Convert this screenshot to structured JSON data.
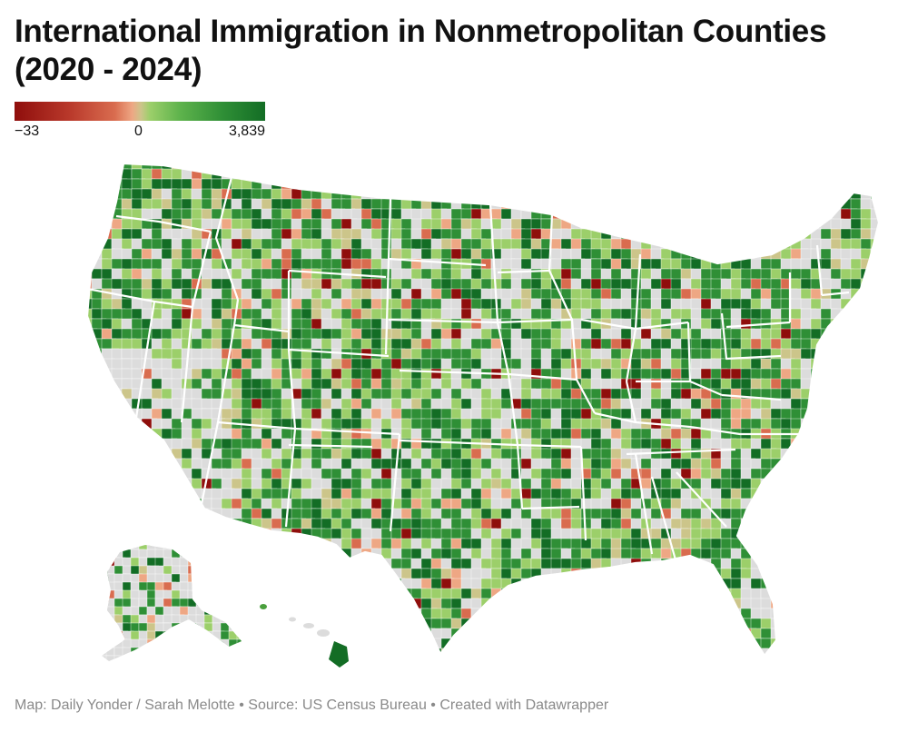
{
  "title": "International Immigration in Nonmetropolitan Counties (2020 - 2024)",
  "legend": {
    "min_label": "−33",
    "mid_label": "0",
    "max_label": "3,839",
    "min_value": -33,
    "max_value": 3839,
    "colors": [
      "#8f0e0c",
      "#d96c4f",
      "#eea784",
      "#ccc58a",
      "#9ccf6a",
      "#2f8f36",
      "#136d25"
    ],
    "no_data_color": "#dcdcdc"
  },
  "map": {
    "type": "choropleth",
    "geography": "US counties (nonmetropolitan)",
    "regions_shown": [
      "contiguous-us",
      "alaska",
      "hawaii"
    ]
  },
  "footer": "Map: Daily Yonder / Sarah Melotte • Source: US Census Bureau • Created with Datawrapper"
}
